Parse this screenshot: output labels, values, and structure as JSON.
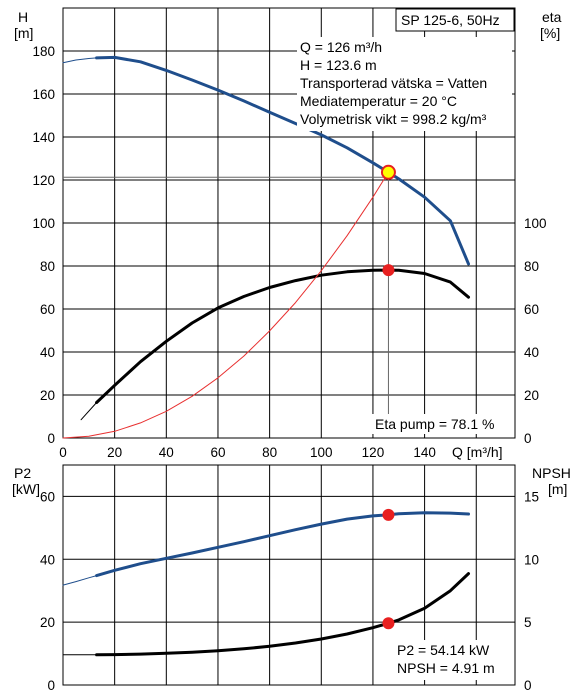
{
  "chart_data": [
    {
      "type": "line",
      "title": "SP 125-6, 50Hz",
      "xlabel": "Q [m³/h]",
      "xlim": [
        0,
        175
      ],
      "x_ticks": [
        0,
        20,
        40,
        60,
        80,
        100,
        120,
        140
      ],
      "x_axis_unit_label": "Q [m³/h]",
      "left_axis": {
        "label_line1": "H",
        "label_line2": "[m]",
        "ylim": [
          0,
          200
        ],
        "ticks": [
          0,
          20,
          40,
          60,
          80,
          100,
          120,
          140,
          160,
          180
        ]
      },
      "right_axis": {
        "label_line1": "eta",
        "label_line2": "[%]",
        "ylim": [
          0,
          200
        ],
        "ticks": [
          0,
          20,
          40,
          60,
          80,
          100
        ]
      },
      "info_lines": [
        "Q = 126 m³/h",
        "H = 123.6 m",
        "Transporterad vätska = Vatten",
        "Mediatemperatur = 20 °C",
        "Volymetrisk vikt = 998.2 kg/m³"
      ],
      "eta_annotation": "Eta pump = 78.1 %",
      "duty_point": {
        "x": 126,
        "H": 123.6,
        "eta": 78.1
      },
      "series": [
        {
          "role": "H",
          "color": "#1f4e8c",
          "width": 3,
          "x": [
            13,
            20,
            30,
            40,
            50,
            60,
            70,
            80,
            90,
            100,
            110,
            120,
            126,
            130,
            140,
            150,
            157
          ],
          "y": [
            176.8,
            177,
            175,
            171,
            166.5,
            161.8,
            156.8,
            151.5,
            146.3,
            141,
            135,
            128,
            123.6,
            120.5,
            112,
            101,
            81
          ]
        },
        {
          "role": "H-extension",
          "color": "#1f4e8c",
          "width": 1,
          "x": [
            0,
            5,
            10,
            13
          ],
          "y": [
            174.5,
            175.8,
            176.5,
            176.8
          ]
        },
        {
          "role": "eta",
          "color": "#000000",
          "width": 3,
          "x": [
            13,
            20,
            30,
            40,
            50,
            60,
            70,
            80,
            90,
            100,
            110,
            120,
            126,
            130,
            140,
            150,
            157
          ],
          "y": [
            16.5,
            24.5,
            35.5,
            45,
            53.5,
            60.5,
            65.8,
            70,
            73.2,
            75.7,
            77.3,
            78,
            78.1,
            78,
            76.5,
            72.5,
            65.5
          ]
        },
        {
          "role": "eta-extension",
          "color": "#000000",
          "width": 1,
          "x": [
            7,
            13
          ],
          "y": [
            8.5,
            16.5
          ]
        },
        {
          "role": "system-curve",
          "color": "#e83030",
          "width": 1,
          "x": [
            0,
            10,
            20,
            30,
            40,
            50,
            60,
            70,
            80,
            90,
            100,
            110,
            120,
            126
          ],
          "y": [
            0,
            0.8,
            3.1,
            7,
            12.4,
            19.4,
            28,
            38.1,
            49.8,
            63,
            77.8,
            94.1,
            112,
            123.6
          ]
        }
      ]
    },
    {
      "type": "line",
      "xlim": [
        0,
        175
      ],
      "left_axis": {
        "label_line1": "P2",
        "label_line2": "[kW]",
        "ylim": [
          0,
          70
        ],
        "ticks": [
          0,
          20,
          40,
          60
        ]
      },
      "right_axis": {
        "label_line1": "NPSH",
        "label_line2": "[m]",
        "ylim": [
          0,
          17.5
        ],
        "ticks": [
          0,
          5,
          10,
          15
        ]
      },
      "info_lines": [
        "P2 = 54.14 kW",
        "NPSH = 4.91 m"
      ],
      "duty_point": {
        "x": 126,
        "P2": 54.14,
        "NPSH": 4.91
      },
      "series": [
        {
          "role": "P2",
          "color": "#1f4e8c",
          "width": 3,
          "x": [
            13,
            20,
            30,
            40,
            50,
            60,
            70,
            80,
            90,
            100,
            110,
            120,
            126,
            130,
            140,
            150,
            157
          ],
          "y": [
            34.8,
            36.5,
            38.6,
            40.3,
            42,
            43.8,
            45.6,
            47.5,
            49.4,
            51.2,
            52.8,
            53.8,
            54.14,
            54.5,
            54.8,
            54.7,
            54.4
          ]
        },
        {
          "role": "P2-extension",
          "color": "#1f4e8c",
          "width": 1,
          "x": [
            0,
            5,
            10,
            13
          ],
          "y": [
            31.8,
            32.9,
            34.1,
            34.8
          ]
        },
        {
          "role": "NPSH",
          "color": "#000000",
          "width": 3,
          "x": [
            13,
            20,
            30,
            40,
            50,
            60,
            70,
            80,
            90,
            100,
            110,
            120,
            126,
            130,
            140,
            150,
            157
          ],
          "y": [
            2.4,
            2.42,
            2.46,
            2.52,
            2.6,
            2.72,
            2.88,
            3.08,
            3.34,
            3.66,
            4.06,
            4.56,
            4.91,
            5.18,
            6.1,
            7.5,
            8.86
          ]
        },
        {
          "role": "NPSH-extension",
          "color": "#000000",
          "width": 1,
          "x": [
            0,
            13
          ],
          "y": [
            2.4,
            2.4
          ]
        }
      ]
    }
  ]
}
